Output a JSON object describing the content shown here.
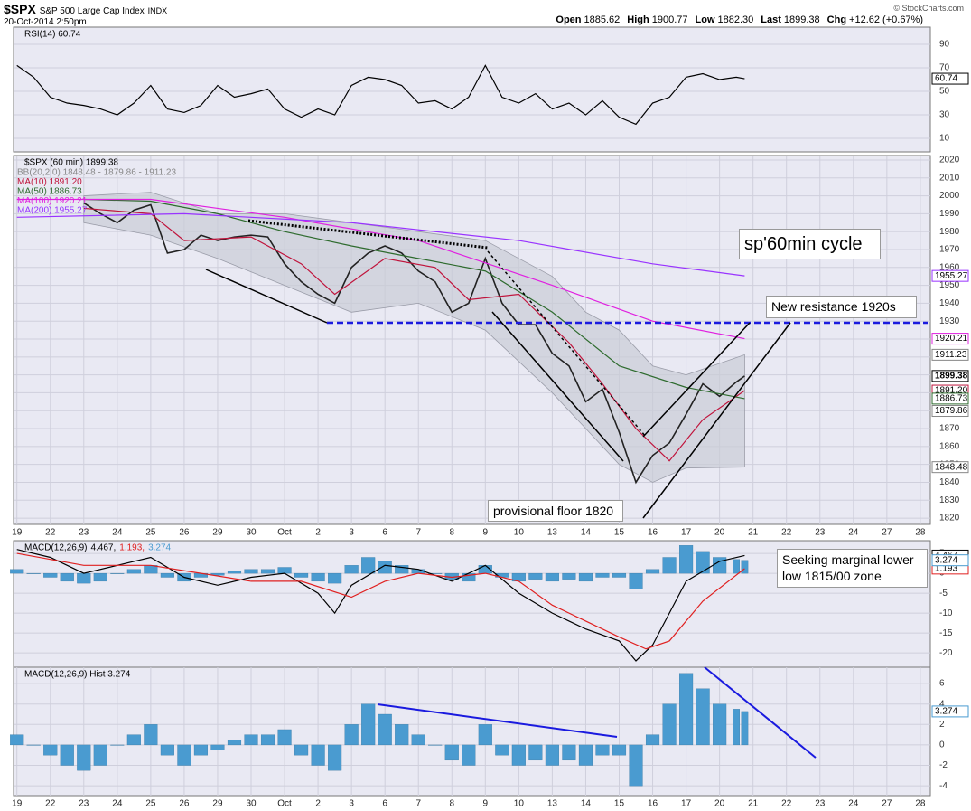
{
  "header": {
    "symbol": "$SPX",
    "name": "S&P 500 Large Cap Index",
    "exchange": "INDX",
    "datetime": "20-Oct-2014 2:50pm",
    "quote": [
      {
        "label": "Open",
        "value": "1885.62"
      },
      {
        "label": "High",
        "value": "1900.77"
      },
      {
        "label": "Low",
        "value": "1882.30"
      },
      {
        "label": "Last",
        "value": "1899.38"
      },
      {
        "label": "Chg",
        "value": "+12.62 (+0.67%)"
      }
    ],
    "copyright": "© StockCharts.com"
  },
  "annotations": [
    "sp'60min cycle",
    "New resistance 1920s",
    "provisional floor 1820",
    "Seeking marginal lower low 1815/00 zone"
  ],
  "chart_data": [
    {
      "type": "line",
      "title": "RSI(14) 60.74",
      "xlim": [
        -0.1,
        27.3
      ],
      "ylim": [
        -1.5,
        104.6
      ],
      "yticks": [
        10,
        30,
        50,
        70,
        90
      ],
      "grid": true,
      "series": [
        {
          "color": "#000000",
          "x": [
            0,
            0.5,
            1,
            1.5,
            2,
            2.5,
            3,
            3.5,
            4,
            4.5,
            5,
            5.5,
            6,
            6.5,
            7,
            7.5,
            8,
            8.5,
            9,
            9.5,
            10,
            10.5,
            11,
            11.5,
            12,
            12.5,
            13,
            13.5,
            14,
            14.5,
            15,
            15.5,
            16,
            16.5,
            17,
            17.5,
            18,
            18.5,
            19,
            19.5,
            20,
            20.5,
            21,
            21.5,
            21.75
          ],
          "values": [
            72,
            62,
            45,
            40,
            38,
            35,
            30,
            40,
            55,
            35,
            32,
            38,
            55,
            45,
            48,
            52,
            35,
            28,
            35,
            30,
            55,
            62,
            60,
            55,
            40,
            42,
            35,
            45,
            72,
            45,
            40,
            48,
            35,
            40,
            30,
            42,
            28,
            22,
            40,
            45,
            62,
            65,
            60,
            62,
            60.74
          ]
        }
      ],
      "tags": [
        {
          "value": 60.74,
          "label": "60.74",
          "color": "#000000"
        }
      ]
    },
    {
      "type": "line",
      "title": "$SPX (60 min) 1899.38",
      "xlim": [
        -0.1,
        27.3
      ],
      "ylim": [
        1816.5,
        2022.5
      ],
      "yticks": [
        1820,
        1830,
        1840,
        1850,
        1860,
        1870,
        1880,
        1890,
        1900,
        1910,
        1920,
        1930,
        1940,
        1950,
        1960,
        1970,
        1980,
        1990,
        2000,
        2010,
        2020
      ],
      "grid": true,
      "xticks": [
        {
          "value": 0,
          "label": "19"
        },
        {
          "value": 1,
          "label": "22"
        },
        {
          "value": 2,
          "label": "23"
        },
        {
          "value": 3,
          "label": "24"
        },
        {
          "value": 4,
          "label": "25"
        },
        {
          "value": 5,
          "label": "26"
        },
        {
          "value": 6,
          "label": "29"
        },
        {
          "value": 7,
          "label": "30"
        },
        {
          "value": 8,
          "label": "Oct"
        },
        {
          "value": 9,
          "label": "2"
        },
        {
          "value": 10,
          "label": "3"
        },
        {
          "value": 11,
          "label": "6"
        },
        {
          "value": 12,
          "label": "7"
        },
        {
          "value": 13,
          "label": "8"
        },
        {
          "value": 14,
          "label": "9"
        },
        {
          "value": 15,
          "label": "10"
        },
        {
          "value": 16,
          "label": "13"
        },
        {
          "value": 17,
          "label": "14"
        },
        {
          "value": 18,
          "label": "15"
        },
        {
          "value": 19,
          "label": "16"
        },
        {
          "value": 20,
          "label": "17"
        },
        {
          "value": 21,
          "label": "20"
        },
        {
          "value": 22,
          "label": "21"
        },
        {
          "value": 23,
          "label": "22"
        },
        {
          "value": 24,
          "label": "23"
        },
        {
          "value": 25,
          "label": "24"
        },
        {
          "value": 26,
          "label": "27"
        },
        {
          "value": 27,
          "label": "28"
        }
      ],
      "band": {
        "name": "BB(20,2.0) 1848.48 - 1879.86 - 1911.23",
        "color": "#c9ccd6",
        "x": [
          2,
          4,
          6,
          8,
          10,
          12,
          14,
          16,
          17,
          18,
          19,
          20,
          21.75
        ],
        "upper": [
          2000,
          2002,
          1990,
          1990,
          1985,
          1980,
          1975,
          1955,
          1935,
          1925,
          1905,
          1900,
          1911.23
        ],
        "lower": [
          1985,
          1978,
          1965,
          1950,
          1935,
          1940,
          1925,
          1890,
          1870,
          1850,
          1840,
          1848,
          1848.48
        ]
      },
      "series": [
        {
          "color": "#222222",
          "x": [
            2,
            2.5,
            3,
            3.5,
            4,
            4.5,
            5,
            5.5,
            6,
            6.5,
            7,
            7.5,
            8,
            8.5,
            9,
            9.5,
            10,
            10.5,
            11,
            11.5,
            12,
            12.5,
            13,
            13.5,
            14,
            14.5,
            15,
            15.5,
            16,
            16.5,
            17,
            17.5,
            18,
            18.5,
            19,
            19.5,
            20,
            20.5,
            21,
            21.5,
            21.75
          ],
          "values": [
            1996,
            1990,
            1985,
            1992,
            1995,
            1968,
            1970,
            1978,
            1975,
            1977,
            1978,
            1977,
            1962,
            1952,
            1945,
            1940,
            1960,
            1968,
            1972,
            1968,
            1958,
            1952,
            1935,
            1940,
            1965,
            1940,
            1928,
            1928,
            1912,
            1905,
            1885,
            1892,
            1868,
            1840,
            1855,
            1862,
            1878,
            1895,
            1888,
            1896,
            1899.38
          ]
        },
        {
          "name": "MA(10) 1891.20",
          "color": "#c0143c",
          "x": [
            2,
            4,
            5,
            7,
            8.5,
            9.5,
            11,
            12.5,
            13.5,
            15,
            16.5,
            17.5,
            18.5,
            19.5,
            20.5,
            21.75
          ],
          "values": [
            1993,
            1990,
            1975,
            1977,
            1962,
            1945,
            1965,
            1960,
            1942,
            1945,
            1918,
            1895,
            1870,
            1852,
            1875,
            1891.2
          ]
        },
        {
          "name": "MA(50) 1886.73",
          "color": "#2e6b2e",
          "x": [
            2,
            4,
            6,
            8,
            10,
            12,
            14,
            16,
            18,
            20,
            21.75
          ],
          "values": [
            1998,
            1997,
            1990,
            1980,
            1972,
            1965,
            1958,
            1935,
            1905,
            1893,
            1886.73
          ]
        },
        {
          "name": "MA(100) 1920.21",
          "color": "#e020e0",
          "x": [
            0,
            4,
            8,
            12,
            16,
            19,
            21.75
          ],
          "values": [
            1998,
            1998,
            1988,
            1975,
            1950,
            1930,
            1920.21
          ]
        },
        {
          "name": "MA(200) 1955.27",
          "color": "#9933ff",
          "x": [
            0,
            5,
            10,
            15,
            19,
            21.75
          ],
          "values": [
            1988,
            1990,
            1985,
            1975,
            1962,
            1955.27
          ]
        }
      ],
      "tags": [
        {
          "value": 1955.27,
          "label": "1955.27",
          "color": "#9933ff"
        },
        {
          "value": 1920.21,
          "label": "1920.21",
          "color": "#e020e0"
        },
        {
          "value": 1911.23,
          "label": "1911.23",
          "color": "#888888"
        },
        {
          "value": 1899.38,
          "label": "1899.38",
          "color": "#000000"
        },
        {
          "value": 1891.2,
          "label": "1891.20",
          "color": "#c0143c"
        },
        {
          "value": 1886.73,
          "label": "1886.73",
          "color": "#2e6b2e"
        },
        {
          "value": 1879.86,
          "label": "1879.86",
          "color": "#888888"
        },
        {
          "value": 1848.48,
          "label": "1848.48",
          "color": "#888888"
        }
      ]
    },
    {
      "type": "line",
      "title": "MACD(12,26,9)",
      "legend_layout": "row",
      "xlim": [
        -0.1,
        27.3
      ],
      "ylim": [
        -23.6,
        8.2
      ],
      "yticks": [
        5,
        0,
        -5,
        -10,
        -15,
        -20
      ],
      "grid": true,
      "series": [
        {
          "name": "3.274",
          "kind": "bar",
          "color": "#4a9bd0",
          "x": [
            0,
            0.5,
            1,
            1.5,
            2,
            2.5,
            3,
            3.5,
            4,
            4.5,
            5,
            5.5,
            6,
            6.5,
            7,
            7.5,
            8,
            8.5,
            9,
            9.5,
            10,
            10.5,
            11,
            11.5,
            12,
            12.5,
            13,
            13.5,
            14,
            14.5,
            15,
            15.5,
            16,
            16.5,
            17,
            17.5,
            18,
            18.5,
            19,
            19.5,
            20,
            20.5,
            21,
            21.5,
            21.75
          ],
          "values": [
            1,
            0,
            -1,
            -2,
            -2.5,
            -2,
            0,
            1,
            2,
            -1,
            -2,
            -1,
            -0.5,
            0.5,
            1,
            1,
            1.5,
            -1,
            -2,
            -2.5,
            2,
            4,
            3,
            2,
            1,
            0,
            -1.5,
            -2,
            2,
            -1,
            -2,
            -1.5,
            -2,
            -1.5,
            -2,
            -1,
            -1,
            -4,
            1,
            4,
            7,
            5.5,
            4,
            3.5,
            3.274
          ]
        },
        {
          "name": "4.467,",
          "color": "#000000",
          "x": [
            0,
            1,
            2,
            3,
            4,
            5,
            6,
            7,
            8,
            9,
            9.5,
            10,
            11,
            12,
            13,
            14,
            15,
            16,
            17,
            18,
            18.5,
            19,
            20,
            21,
            21.75
          ],
          "values": [
            6,
            4,
            0,
            2,
            4,
            -1,
            -3,
            -1,
            0,
            -5,
            -10,
            -3,
            2,
            1,
            -2,
            2,
            -5,
            -10,
            -14,
            -17,
            -22,
            -18,
            -2,
            3,
            4.467
          ]
        },
        {
          "name": "1.193,",
          "color": "#e02020",
          "x": [
            0,
            2,
            4,
            5.5,
            7,
            8.5,
            10,
            11,
            12,
            13,
            14,
            15,
            16,
            17,
            18,
            18.8,
            19.5,
            20.5,
            21.75
          ],
          "values": [
            5,
            2,
            2,
            0,
            -2,
            -2,
            -6,
            -2,
            0,
            -1,
            0,
            -2,
            -8,
            -12,
            -16,
            -19,
            -17,
            -7,
            1.193
          ]
        }
      ],
      "tags": [
        {
          "value": 4.467,
          "label": "4.467",
          "color": "#000000"
        },
        {
          "value": 1.193,
          "label": "1.193",
          "color": "#e02020"
        },
        {
          "value": 3.274,
          "label": "3.274",
          "color": "#4a9bd0"
        }
      ]
    },
    {
      "type": "bar",
      "title": "MACD(12,26,9) Hist 3.274",
      "xlim": [
        -0.1,
        27.3
      ],
      "ylim": [
        -4.96,
        7.6
      ],
      "yticks": [
        6,
        4,
        2,
        0,
        -2,
        -4
      ],
      "grid": true,
      "xticks": [
        {
          "value": 0,
          "label": "19"
        },
        {
          "value": 1,
          "label": "22"
        },
        {
          "value": 2,
          "label": "23"
        },
        {
          "value": 3,
          "label": "24"
        },
        {
          "value": 4,
          "label": "25"
        },
        {
          "value": 5,
          "label": "26"
        },
        {
          "value": 6,
          "label": "29"
        },
        {
          "value": 7,
          "label": "30"
        },
        {
          "value": 8,
          "label": "Oct"
        },
        {
          "value": 9,
          "label": "2"
        },
        {
          "value": 10,
          "label": "3"
        },
        {
          "value": 11,
          "label": "6"
        },
        {
          "value": 12,
          "label": "7"
        },
        {
          "value": 13,
          "label": "8"
        },
        {
          "value": 14,
          "label": "9"
        },
        {
          "value": 15,
          "label": "10"
        },
        {
          "value": 16,
          "label": "13"
        },
        {
          "value": 17,
          "label": "14"
        },
        {
          "value": 18,
          "label": "15"
        },
        {
          "value": 19,
          "label": "16"
        },
        {
          "value": 20,
          "label": "17"
        },
        {
          "value": 21,
          "label": "20"
        },
        {
          "value": 22,
          "label": "21"
        },
        {
          "value": 23,
          "label": "22"
        },
        {
          "value": 24,
          "label": "23"
        },
        {
          "value": 25,
          "label": "24"
        },
        {
          "value": 26,
          "label": "27"
        },
        {
          "value": 27,
          "label": "28"
        }
      ],
      "series": [
        {
          "color": "#4a9bd0",
          "x": [
            0,
            0.5,
            1,
            1.5,
            2,
            2.5,
            3,
            3.5,
            4,
            4.5,
            5,
            5.5,
            6,
            6.5,
            7,
            7.5,
            8,
            8.5,
            9,
            9.5,
            10,
            10.5,
            11,
            11.5,
            12,
            12.5,
            13,
            13.5,
            14,
            14.5,
            15,
            15.5,
            16,
            16.5,
            17,
            17.5,
            18,
            18.5,
            19,
            19.5,
            20,
            20.5,
            21,
            21.5,
            21.75
          ],
          "values": [
            1,
            0,
            -1,
            -2,
            -2.5,
            -2,
            0,
            1,
            2,
            -1,
            -2,
            -1,
            -0.5,
            0.5,
            1,
            1,
            1.5,
            -1,
            -2,
            -2.5,
            2,
            4,
            3,
            2,
            1,
            0,
            -1.5,
            -2,
            2,
            -1,
            -2,
            -1.5,
            -2,
            -1.5,
            -2,
            -1,
            -1,
            -4,
            1,
            4,
            7,
            5.5,
            4,
            3.5,
            3.274
          ]
        }
      ],
      "tags": [
        {
          "value": 3.274,
          "label": "3.274",
          "color": "#4a9bd0"
        }
      ]
    }
  ]
}
